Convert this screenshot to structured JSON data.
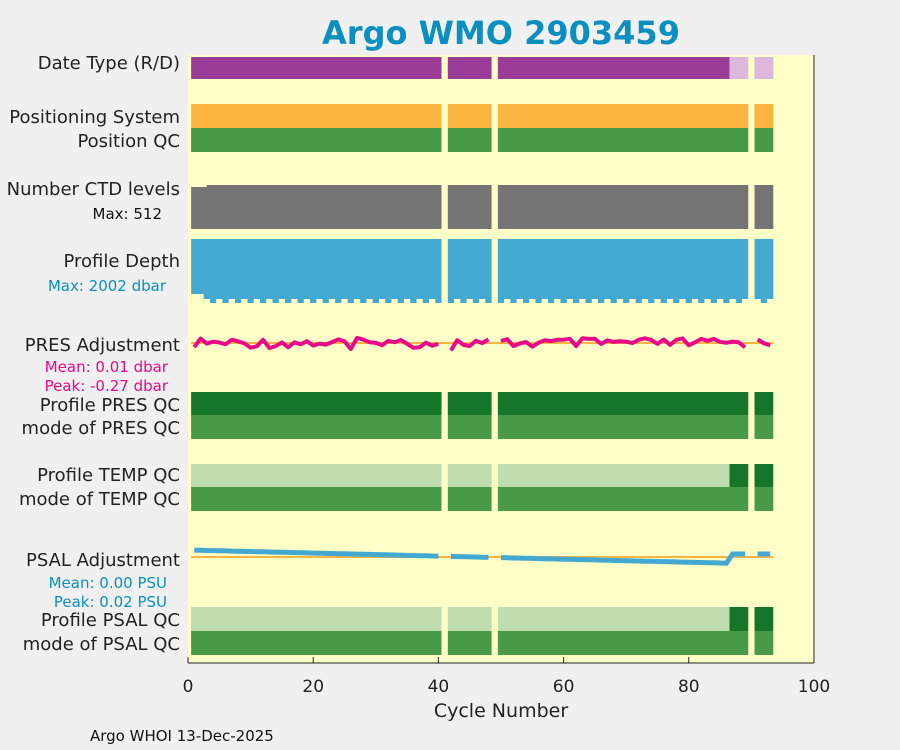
{
  "chart_data": {
    "type": "bar",
    "title": "Argo WMO 2903459",
    "xlabel": "Cycle Number",
    "xlim": [
      0,
      100
    ],
    "xticks": [
      0,
      20,
      40,
      60,
      80,
      100
    ],
    "gaps": [
      41,
      49,
      90
    ],
    "last_cycle": 93,
    "rows": [
      {
        "key": "date_type",
        "label": "Date Type (R/D)",
        "color": "#9b3d96",
        "segments_light": [
          {
            "from": 86.5,
            "color": "#deb8dc"
          }
        ]
      },
      {
        "key": "pos_sys",
        "label": "Positioning System",
        "color": "#fbb440"
      },
      {
        "key": "pos_qc",
        "label": "Position QC",
        "color": "#499a47"
      },
      {
        "key": "ctd",
        "label": "Number CTD levels",
        "sublabel": "Max: 512",
        "color": "#747474"
      },
      {
        "key": "depth",
        "label": "Profile Depth",
        "sublabel": "Max: 2002 dbar",
        "color": "#43a9d0"
      },
      {
        "key": "pres_adj",
        "label": "PRES Adjustment",
        "sub_mean": "Mean: 0.01 dbar",
        "sub_peak": "Peak: -0.27 dbar",
        "color": "#e8098a"
      },
      {
        "key": "pres_qc",
        "label": "Profile PRES QC",
        "color": "#157529"
      },
      {
        "key": "pres_mode",
        "label": "mode of PRES QC",
        "color": "#499a47"
      },
      {
        "key": "temp_qc",
        "label": "Profile TEMP QC",
        "color": "#bfddaf",
        "segments_dark": [
          {
            "from": 86.5,
            "color": "#157529"
          }
        ]
      },
      {
        "key": "temp_mode",
        "label": "mode of TEMP QC",
        "color": "#499a47"
      },
      {
        "key": "psal_adj",
        "label": "PSAL Adjustment",
        "sub_mean": "Mean: 0.00 PSU",
        "sub_peak": "Peak: 0.02 PSU",
        "color": "#43a9d0"
      },
      {
        "key": "psal_qc",
        "label": "Profile PSAL QC",
        "color": "#bfddaf",
        "segments_dark": [
          {
            "from": 86.5,
            "color": "#157529"
          }
        ]
      },
      {
        "key": "psal_mode",
        "label": "mode of PSAL QC",
        "color": "#499a47"
      }
    ],
    "ctd_max": 512,
    "depth_max_dbar": 2002,
    "pres_adjustment_mean": 0.01,
    "pres_adjustment_peak": -0.27,
    "psal_adjustment_mean": 0.0,
    "psal_adjustment_peak": 0.02
  },
  "footer": "Argo WHOI 13-Dec-2025",
  "colors": {
    "plot_bg": "#ffffc8",
    "figure_bg": "#f0f0f0",
    "zero_line": "#fbb440",
    "title": "#0a8fc0",
    "pres_sub": "#e8098a",
    "psal_sub": "#0a8fc0"
  }
}
